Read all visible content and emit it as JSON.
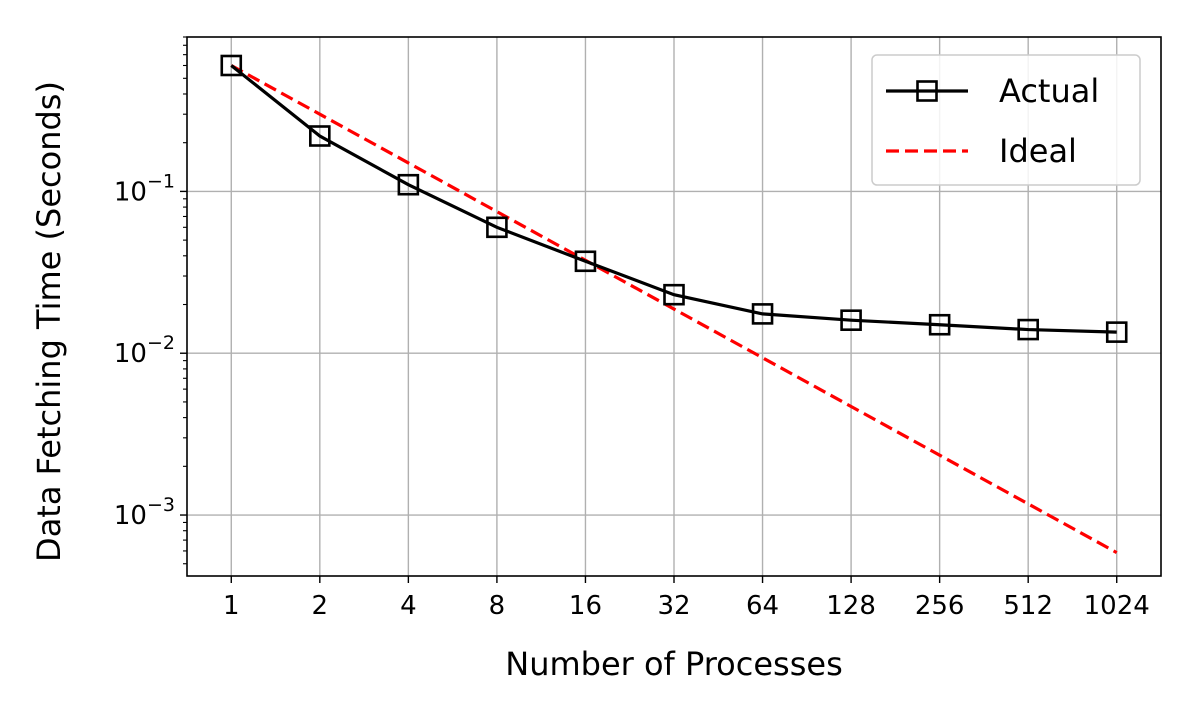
{
  "chart_data": {
    "type": "line",
    "title": "",
    "xlabel": "Number of Processes",
    "ylabel": "Data Fetching Time (Seconds)",
    "x_scale": "log2",
    "y_scale": "log10",
    "grid": true,
    "legend_position": "top-right",
    "x": [
      1,
      2,
      4,
      8,
      16,
      32,
      64,
      128,
      256,
      512,
      1024
    ],
    "x_tick_labels": [
      "1",
      "2",
      "4",
      "8",
      "16",
      "32",
      "64",
      "128",
      "256",
      "512",
      "1024"
    ],
    "y_ticks": [
      {
        "value": 0.1,
        "base": "10",
        "exp": "−1"
      },
      {
        "value": 0.01,
        "base": "10",
        "exp": "−2"
      },
      {
        "value": 0.001,
        "base": "10",
        "exp": "−3"
      }
    ],
    "ylim": [
      0.00042,
      0.9
    ],
    "series": [
      {
        "name": "Actual",
        "color": "#000000",
        "style": "solid",
        "marker": "square-open",
        "values": [
          0.6,
          0.22,
          0.11,
          0.06,
          0.037,
          0.023,
          0.0175,
          0.016,
          0.015,
          0.014,
          0.0135
        ]
      },
      {
        "name": "Ideal",
        "color": "#ff0000",
        "style": "dashed",
        "marker": "none",
        "values": [
          0.6,
          0.3,
          0.15,
          0.075,
          0.0375,
          0.01875,
          0.009375,
          0.0046875,
          0.00234375,
          0.001171875,
          0.0005859375
        ]
      }
    ]
  }
}
